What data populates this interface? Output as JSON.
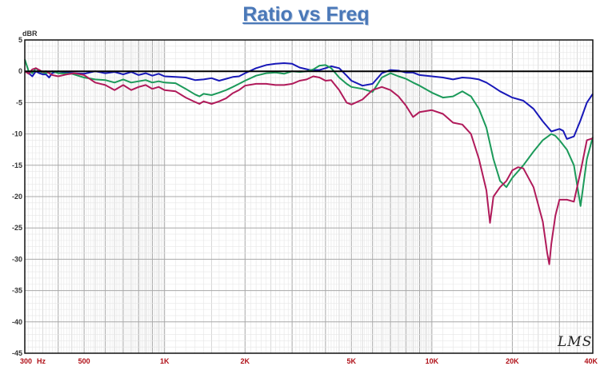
{
  "chart_data": {
    "type": "line",
    "title": "Ratio vs Freq",
    "ylabel": "dBR",
    "xscale": "log",
    "xlim": [
      300,
      40000
    ],
    "ylim": [
      -45,
      5
    ],
    "grid": true,
    "y_ticks": [
      5,
      0,
      -5,
      -10,
      -15,
      -20,
      -25,
      -30,
      -35,
      -40,
      -45
    ],
    "y_tick_labels": [
      "5",
      "0",
      "-5",
      "-10",
      "-15",
      "-20",
      "-25",
      "-30",
      "-35",
      "-40",
      "-45"
    ],
    "x_ticks": [
      300,
      500,
      1000,
      2000,
      5000,
      10000,
      20000,
      40000
    ],
    "x_tick_labels": [
      "300",
      "500",
      "1K",
      "2K",
      "5K",
      "10K",
      "20K",
      "40K"
    ],
    "x_unit_label": "Hz",
    "reference_line": 0,
    "series": [
      {
        "color": "#1818b8",
        "points": [
          [
            300,
            0
          ],
          [
            310,
            -0.3
          ],
          [
            320,
            -0.8
          ],
          [
            330,
            0
          ],
          [
            340,
            -0.3
          ],
          [
            350,
            -0.5
          ],
          [
            360,
            -0.5
          ],
          [
            370,
            -1.0
          ],
          [
            380,
            -0.3
          ],
          [
            400,
            0
          ],
          [
            430,
            -0.2
          ],
          [
            460,
            -0.3
          ],
          [
            500,
            -0.4
          ],
          [
            550,
            0
          ],
          [
            600,
            -0.3
          ],
          [
            650,
            -0.1
          ],
          [
            700,
            -0.5
          ],
          [
            750,
            -0.1
          ],
          [
            800,
            -0.6
          ],
          [
            850,
            -0.3
          ],
          [
            900,
            -0.7
          ],
          [
            950,
            -0.4
          ],
          [
            1000,
            -0.8
          ],
          [
            1100,
            -0.9
          ],
          [
            1200,
            -1.0
          ],
          [
            1300,
            -1.4
          ],
          [
            1400,
            -1.3
          ],
          [
            1500,
            -1.1
          ],
          [
            1600,
            -1.5
          ],
          [
            1700,
            -1.2
          ],
          [
            1800,
            -0.9
          ],
          [
            1900,
            -0.8
          ],
          [
            2000,
            -0.3
          ],
          [
            2200,
            0.5
          ],
          [
            2400,
            1.0
          ],
          [
            2600,
            1.2
          ],
          [
            2800,
            1.3
          ],
          [
            3000,
            1.2
          ],
          [
            3200,
            0.6
          ],
          [
            3500,
            0.2
          ],
          [
            3800,
            0.2
          ],
          [
            4000,
            0.5
          ],
          [
            4200,
            0.8
          ],
          [
            4500,
            0.5
          ],
          [
            4800,
            -0.7
          ],
          [
            5000,
            -1.5
          ],
          [
            5500,
            -2.3
          ],
          [
            6000,
            -2.0
          ],
          [
            6500,
            -0.3
          ],
          [
            7000,
            0.2
          ],
          [
            7500,
            0.1
          ],
          [
            8000,
            -0.2
          ],
          [
            8500,
            -0.2
          ],
          [
            9000,
            -0.6
          ],
          [
            10000,
            -0.8
          ],
          [
            11000,
            -1.0
          ],
          [
            12000,
            -1.3
          ],
          [
            13000,
            -1.0
          ],
          [
            14000,
            -1.1
          ],
          [
            15000,
            -1.3
          ],
          [
            16000,
            -1.8
          ],
          [
            17000,
            -2.5
          ],
          [
            18000,
            -3.2
          ],
          [
            20000,
            -4.2
          ],
          [
            22000,
            -4.7
          ],
          [
            24000,
            -6
          ],
          [
            26000,
            -8
          ],
          [
            28000,
            -9.6
          ],
          [
            30000,
            -9.2
          ],
          [
            31000,
            -9.5
          ],
          [
            32000,
            -10.8
          ],
          [
            34000,
            -10.4
          ],
          [
            36000,
            -7.8
          ],
          [
            38000,
            -5.0
          ],
          [
            40000,
            -3.6
          ]
        ]
      },
      {
        "color": "#1c9a5a",
        "points": [
          [
            300,
            1.9
          ],
          [
            310,
            0
          ],
          [
            320,
            -0.3
          ],
          [
            330,
            0.5
          ],
          [
            340,
            0
          ],
          [
            350,
            -0.2
          ],
          [
            360,
            -0.3
          ],
          [
            380,
            0
          ],
          [
            400,
            -0.3
          ],
          [
            450,
            -0.4
          ],
          [
            500,
            -1.0
          ],
          [
            550,
            -1.3
          ],
          [
            600,
            -1.4
          ],
          [
            650,
            -1.8
          ],
          [
            700,
            -1.3
          ],
          [
            750,
            -1.8
          ],
          [
            800,
            -1.6
          ],
          [
            850,
            -1.4
          ],
          [
            900,
            -1.8
          ],
          [
            950,
            -1.6
          ],
          [
            1000,
            -1.8
          ],
          [
            1100,
            -1.9
          ],
          [
            1200,
            -2.8
          ],
          [
            1300,
            -3.7
          ],
          [
            1350,
            -4.0
          ],
          [
            1400,
            -3.6
          ],
          [
            1500,
            -3.8
          ],
          [
            1600,
            -3.4
          ],
          [
            1700,
            -3.0
          ],
          [
            1800,
            -2.5
          ],
          [
            1900,
            -2.0
          ],
          [
            2000,
            -1.5
          ],
          [
            2200,
            -0.7
          ],
          [
            2400,
            -0.3
          ],
          [
            2600,
            -0.2
          ],
          [
            2800,
            -0.4
          ],
          [
            3000,
            0
          ],
          [
            3200,
            -0.1
          ],
          [
            3400,
            0
          ],
          [
            3600,
            0.3
          ],
          [
            3800,
            0.9
          ],
          [
            4000,
            1.0
          ],
          [
            4200,
            0.5
          ],
          [
            4500,
            -1.0
          ],
          [
            4800,
            -2.0
          ],
          [
            5000,
            -2.5
          ],
          [
            5500,
            -2.8
          ],
          [
            6000,
            -3.3
          ],
          [
            6500,
            -1.0
          ],
          [
            7000,
            -0.3
          ],
          [
            7500,
            -0.8
          ],
          [
            8000,
            -1.2
          ],
          [
            8500,
            -1.8
          ],
          [
            9000,
            -2.3
          ],
          [
            10000,
            -3.4
          ],
          [
            11000,
            -4.2
          ],
          [
            12000,
            -4.0
          ],
          [
            13000,
            -3.2
          ],
          [
            14000,
            -4.0
          ],
          [
            15000,
            -6.0
          ],
          [
            16000,
            -9.0
          ],
          [
            17000,
            -14
          ],
          [
            18000,
            -17.5
          ],
          [
            19000,
            -18.5
          ],
          [
            20000,
            -17.0
          ],
          [
            22000,
            -15.0
          ],
          [
            24000,
            -12.8
          ],
          [
            26000,
            -11
          ],
          [
            28000,
            -10
          ],
          [
            29000,
            -10.3
          ],
          [
            30000,
            -11.0
          ],
          [
            32000,
            -12.5
          ],
          [
            34000,
            -15
          ],
          [
            36000,
            -21.5
          ],
          [
            38000,
            -14.0
          ],
          [
            40000,
            -10.5
          ]
        ]
      },
      {
        "color": "#b01a5a",
        "points": [
          [
            300,
            0
          ],
          [
            310,
            -0.4
          ],
          [
            320,
            0.3
          ],
          [
            330,
            0.5
          ],
          [
            340,
            0.2
          ],
          [
            350,
            -0.1
          ],
          [
            360,
            0
          ],
          [
            380,
            -0.6
          ],
          [
            400,
            -0.8
          ],
          [
            430,
            -0.5
          ],
          [
            460,
            -0.3
          ],
          [
            500,
            -0.6
          ],
          [
            550,
            -1.8
          ],
          [
            600,
            -2.2
          ],
          [
            650,
            -3.0
          ],
          [
            700,
            -2.2
          ],
          [
            750,
            -3.0
          ],
          [
            800,
            -2.5
          ],
          [
            850,
            -2.2
          ],
          [
            900,
            -2.8
          ],
          [
            950,
            -2.5
          ],
          [
            1000,
            -3.0
          ],
          [
            1100,
            -3.2
          ],
          [
            1200,
            -4.2
          ],
          [
            1300,
            -4.9
          ],
          [
            1350,
            -5.2
          ],
          [
            1400,
            -4.8
          ],
          [
            1500,
            -5.2
          ],
          [
            1600,
            -4.8
          ],
          [
            1700,
            -4.3
          ],
          [
            1800,
            -3.5
          ],
          [
            1900,
            -3.0
          ],
          [
            2000,
            -2.3
          ],
          [
            2200,
            -2.0
          ],
          [
            2400,
            -2.0
          ],
          [
            2600,
            -2.2
          ],
          [
            2800,
            -2.2
          ],
          [
            3000,
            -2.0
          ],
          [
            3200,
            -1.5
          ],
          [
            3400,
            -1.3
          ],
          [
            3600,
            -0.8
          ],
          [
            3800,
            -1.0
          ],
          [
            4000,
            -1.5
          ],
          [
            4200,
            -1.4
          ],
          [
            4500,
            -3.0
          ],
          [
            4800,
            -5.0
          ],
          [
            5000,
            -5.3
          ],
          [
            5500,
            -4.5
          ],
          [
            6000,
            -3.0
          ],
          [
            6500,
            -2.5
          ],
          [
            7000,
            -3.0
          ],
          [
            7500,
            -4.0
          ],
          [
            8000,
            -5.5
          ],
          [
            8500,
            -7.3
          ],
          [
            9000,
            -6.5
          ],
          [
            10000,
            -6.2
          ],
          [
            11000,
            -6.8
          ],
          [
            12000,
            -8.2
          ],
          [
            13000,
            -8.5
          ],
          [
            14000,
            -10.0
          ],
          [
            15000,
            -14.0
          ],
          [
            16000,
            -19.0
          ],
          [
            16500,
            -24.2
          ],
          [
            17000,
            -20.0
          ],
          [
            18000,
            -18.5
          ],
          [
            19000,
            -17.5
          ],
          [
            20000,
            -15.8
          ],
          [
            21000,
            -15.3
          ],
          [
            22000,
            -15.5
          ],
          [
            24000,
            -18.5
          ],
          [
            26000,
            -24.0
          ],
          [
            27000,
            -29.0
          ],
          [
            27500,
            -30.8
          ],
          [
            28000,
            -27.5
          ],
          [
            29000,
            -23.0
          ],
          [
            30000,
            -20.5
          ],
          [
            32000,
            -20.5
          ],
          [
            34000,
            -20.8
          ],
          [
            36000,
            -16.0
          ],
          [
            38000,
            -11.0
          ],
          [
            40000,
            -10.7
          ]
        ]
      }
    ]
  },
  "signature": "LMS"
}
